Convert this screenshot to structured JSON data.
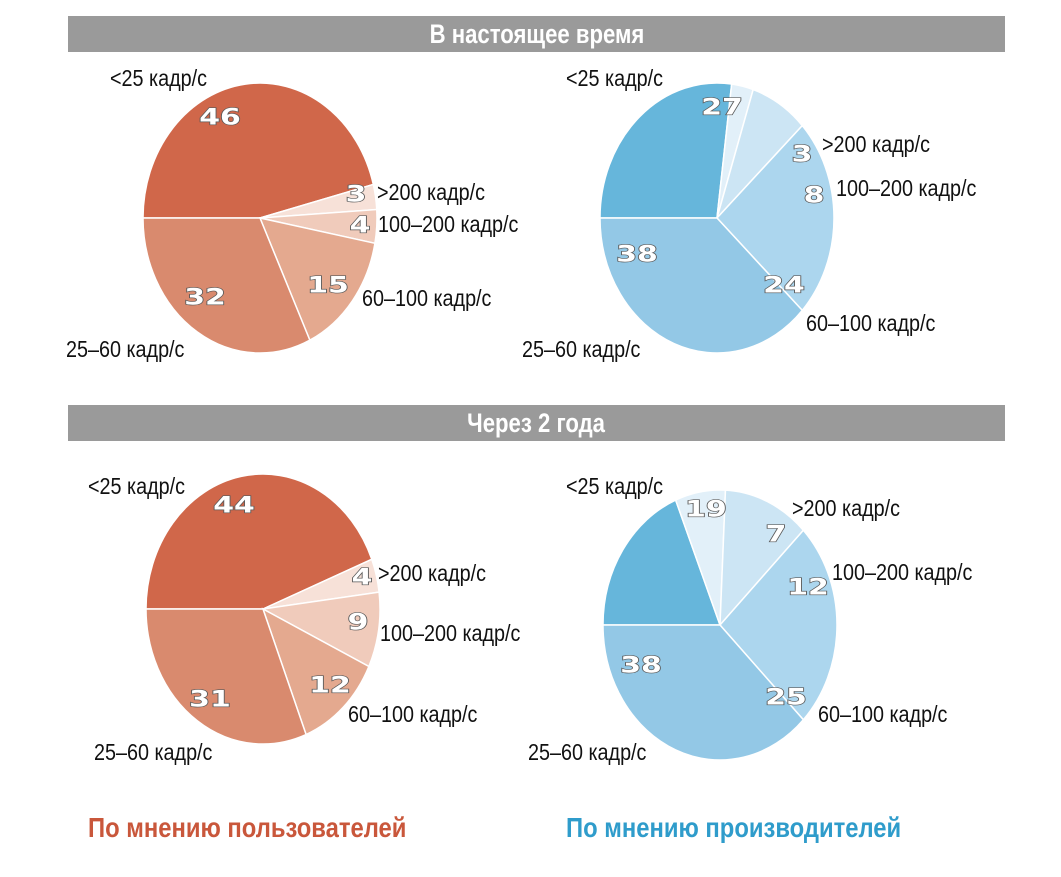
{
  "headers": {
    "current": "В настоящее время",
    "future": "Через 2 года"
  },
  "footer": {
    "users": "По мнению пользователей",
    "makers": "По мнению производителей"
  },
  "colors": {
    "users": {
      "slice_lt25": "#d0674a",
      "slice_25_60": "#d98a6e",
      "slice_60_100": "#e4a98f",
      "slice_100_200": "#f0cbbb",
      "slice_gt200": "#f7e1d8",
      "footer": "#c9573b"
    },
    "makers": {
      "slice_lt25": "#66b6db",
      "slice_25_60": "#93c8e6",
      "slice_60_100": "#acd6ee",
      "slice_100_200": "#cce5f4",
      "slice_gt200": "#e2f0f9",
      "footer": "#2f9ccb"
    },
    "header_band": "#9a9a9a"
  },
  "chart_data": [
    {
      "type": "pie",
      "group": "В настоящее время",
      "source": "По мнению пользователей",
      "categories": [
        "<25 кадр/с",
        ">200 кадр/с",
        "100–200 кадр/с",
        "60–100 кадр/с",
        "25–60 кадр/с"
      ],
      "values": [
        46,
        3,
        4,
        15,
        32
      ]
    },
    {
      "type": "pie",
      "group": "В настоящее время",
      "source": "По мнению производителей",
      "categories": [
        "<25 кадр/с",
        ">200 кадр/с",
        "100–200 кадр/с",
        "60–100 кадр/с",
        "25–60 кадр/с"
      ],
      "values": [
        27,
        3,
        8,
        24,
        38
      ]
    },
    {
      "type": "pie",
      "group": "Через 2 года",
      "source": "По мнению пользователей",
      "categories": [
        "<25 кадр/с",
        ">200 кадр/с",
        "100–200 кадр/с",
        "60–100 кадр/с",
        "25–60 кадр/с"
      ],
      "values": [
        44,
        4,
        9,
        12,
        31
      ]
    },
    {
      "type": "pie",
      "group": "Через 2 года",
      "source": "По мнению производителей",
      "categories": [
        "<25 кадр/с",
        ">200 кадр/с",
        "100–200 кадр/с",
        "60–100 кадр/с",
        "25–60 кадр/с"
      ],
      "values": [
        19,
        7,
        12,
        25,
        38
      ]
    }
  ]
}
